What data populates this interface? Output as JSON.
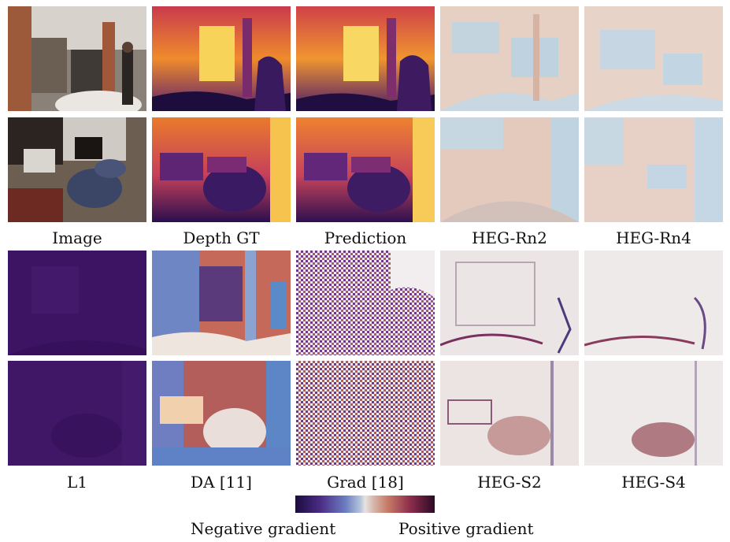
{
  "figure": {
    "row_labels_top": [
      "Image",
      "Depth GT",
      "Prediction",
      "HEG-Rn2",
      "HEG-Rn4"
    ],
    "row_labels_bottom": [
      "L1",
      "DA [11]",
      "Grad [18]",
      "HEG-S2",
      "HEG-S4"
    ],
    "legend": {
      "negative": "Negative gradient",
      "positive": "Positive gradient",
      "colors": [
        "#1a0b3e",
        "#4b2c86",
        "#6b7dc0",
        "#b7c7dc",
        "#e7e3e1",
        "#d6b8ad",
        "#c77c67",
        "#8e2e4d",
        "#2a0a25"
      ]
    }
  }
}
